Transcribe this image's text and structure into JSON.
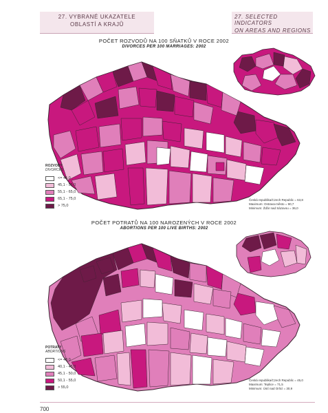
{
  "header": {
    "left_line1": "27. VYBRANÉ UKAZATELE",
    "left_line2": "OBLASTÍ A KRAJŮ",
    "right_line1": "27. SELECTED INDICATORS",
    "right_line2": "ON AREAS AND REGIONS"
  },
  "colors": {
    "class1": "#ffffff",
    "class2": "#f2bcd8",
    "class3": "#e07fba",
    "class4": "#c8187e",
    "class5": "#6e1a48",
    "border": "#3d2332"
  },
  "maps": [
    {
      "title": "POČET ROZVODŮ NA 100 SŇATKŮ V ROCE 2002",
      "subtitle": "DIVORCES PER 100 MARRIAGES: 2002",
      "legend_title": "ROZVODY",
      "legend_subtitle": "DIVORCES",
      "legend": [
        "<= 45,0",
        "45,1 - 55,0",
        "55,1 - 65,0",
        "65,1 - 75,0",
        "> 75,0"
      ],
      "stats": [
        "Česká republika/Czech Republic = 63,8",
        "Maximum: Ostrava-město = 90,7",
        "Minimum: Žďár nad Sázavou = 36,0"
      ]
    },
    {
      "title": "POČET POTRATŮ NA 100 NAROZENÝCH V ROCE 2002",
      "subtitle": "ABORTIONS PER 100 LIVE BIRTHS: 2002",
      "legend_title": "POTRATY",
      "legend_subtitle": "ABORTIONS",
      "legend": [
        "<= 40,0",
        "40,1 - 45,0",
        "45,1 - 50,0",
        "50,1 - 55,0",
        "> 55,0"
      ],
      "stats": [
        "Česká republika/Czech Republic = 45,0",
        "Maximum: Teplice = 71,5",
        "Minimum: Ústí nad Orlicí = 30,9"
      ]
    }
  ],
  "page_number": "700"
}
